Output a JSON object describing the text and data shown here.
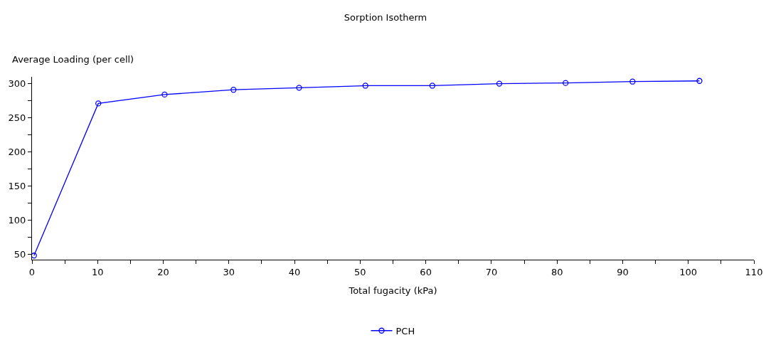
{
  "chart_data": {
    "type": "line",
    "title": "Sorption Isotherm",
    "xlabel": "Total fugacity (kPa)",
    "ylabel": "Average Loading (per cell)",
    "x": [
      0.3,
      10.1,
      20.2,
      30.7,
      40.7,
      50.8,
      61.0,
      71.2,
      81.3,
      91.5,
      101.7
    ],
    "series": [
      {
        "name": "PCH",
        "color": "#0000ff",
        "values": [
          48,
          271,
          284,
          291,
          294,
          297,
          297,
          300,
          301,
          303,
          304
        ]
      }
    ],
    "xlim": [
      0,
      110
    ],
    "xticks": [
      0,
      {
        "value": 5,
        "label": null
      },
      10,
      {
        "value": 15,
        "label": null
      },
      20,
      {
        "value": 25,
        "label": null
      },
      30,
      {
        "value": 35,
        "label": null
      },
      40,
      {
        "value": 45,
        "label": null
      },
      50,
      {
        "value": 55,
        "label": null
      },
      60,
      {
        "value": 65,
        "label": null
      },
      70,
      {
        "value": 75,
        "label": null
      },
      80,
      {
        "value": 85,
        "label": null
      },
      90,
      {
        "value": 95,
        "label": null
      },
      100,
      {
        "value": 105,
        "label": null
      },
      110
    ],
    "ylim": [
      42,
      310
    ],
    "yticks": [
      50,
      {
        "value": 75,
        "label": null
      },
      100,
      {
        "value": 125,
        "label": null
      },
      150,
      {
        "value": 175,
        "label": null
      },
      200,
      {
        "value": 225,
        "label": null
      },
      250,
      {
        "value": 275,
        "label": null
      },
      300
    ],
    "legend": "bottom",
    "marker": "circle",
    "line_style": "solid"
  }
}
